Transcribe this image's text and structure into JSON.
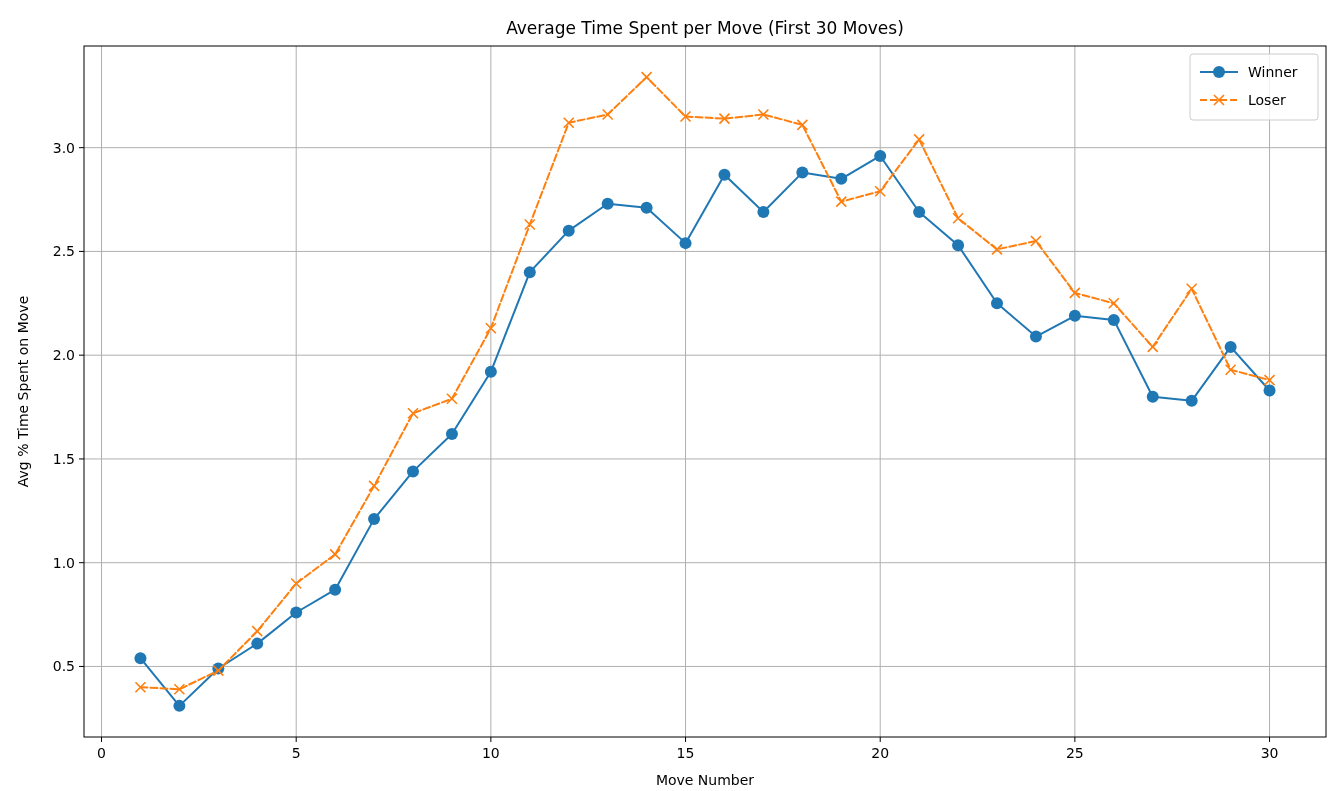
{
  "chart_data": {
    "type": "line",
    "title": "Average Time Spent per Move (First 30 Moves)",
    "xlabel": "Move Number",
    "ylabel": "Avg % Time Spent on Move",
    "x": [
      1,
      2,
      3,
      4,
      5,
      6,
      7,
      8,
      9,
      10,
      11,
      12,
      13,
      14,
      15,
      16,
      17,
      18,
      19,
      20,
      21,
      22,
      23,
      24,
      25,
      26,
      27,
      28,
      29,
      30
    ],
    "series": [
      {
        "name": "Winner",
        "color": "#1f77b4",
        "marker": "circle",
        "line_style": "solid",
        "values": [
          0.54,
          0.31,
          0.49,
          0.61,
          0.76,
          0.87,
          1.21,
          1.44,
          1.62,
          1.92,
          2.4,
          2.6,
          2.73,
          2.71,
          2.54,
          2.87,
          2.69,
          2.88,
          2.85,
          2.96,
          2.69,
          2.53,
          2.25,
          2.09,
          2.19,
          2.17,
          1.8,
          1.78,
          2.04,
          1.83
        ]
      },
      {
        "name": "Loser",
        "color": "#ff7f0e",
        "marker": "cross",
        "line_style": "dashed",
        "values": [
          0.4,
          0.39,
          0.48,
          0.67,
          0.9,
          1.04,
          1.37,
          1.72,
          1.79,
          2.13,
          2.63,
          3.12,
          3.16,
          3.34,
          3.15,
          3.14,
          3.16,
          3.11,
          2.74,
          2.79,
          3.04,
          2.66,
          2.51,
          2.55,
          2.3,
          2.25,
          2.04,
          2.32,
          1.93,
          1.88
        ]
      }
    ],
    "xlim": [
      -0.45,
      31.45
    ],
    "xticks": [
      0,
      5,
      10,
      15,
      20,
      25,
      30
    ],
    "ylim": [
      0.16,
      3.49
    ],
    "yticks": [
      0.5,
      {
        "value": 1,
        "label": "1.0"
      },
      1.5,
      {
        "value": 2,
        "label": "2.0"
      },
      2.5,
      {
        "value": 3,
        "label": "3.0"
      }
    ],
    "grid": true,
    "legend": "top right"
  }
}
